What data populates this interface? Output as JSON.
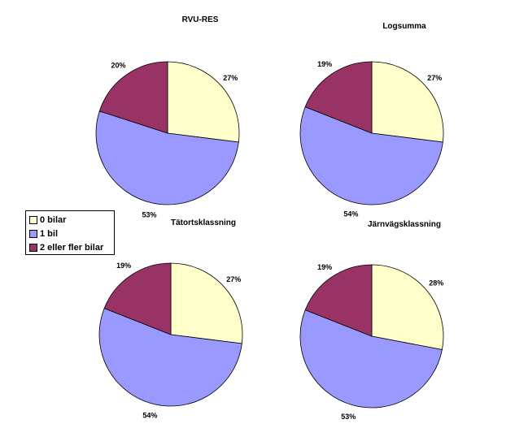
{
  "chart_data": [
    {
      "type": "pie",
      "title": "RVU-RES",
      "categories": [
        "0 bilar",
        "1 bil",
        "2 eller fler bilar"
      ],
      "values": [
        27,
        53,
        20
      ],
      "value_labels": [
        "27%",
        "53%",
        "20%"
      ]
    },
    {
      "type": "pie",
      "title": "Logsumma",
      "categories": [
        "0 bilar",
        "1 bil",
        "2 eller fler bilar"
      ],
      "values": [
        27,
        54,
        19
      ],
      "value_labels": [
        "27%",
        "54%",
        "19%"
      ]
    },
    {
      "type": "pie",
      "title": "Tätortsklassning",
      "categories": [
        "0 bilar",
        "1 bil",
        "2 eller fler bilar"
      ],
      "values": [
        27,
        54,
        19
      ],
      "value_labels": [
        "27%",
        "54%",
        "19%"
      ]
    },
    {
      "type": "pie",
      "title": "Järnvägsklassning",
      "categories": [
        "0 bilar",
        "1 bil",
        "2 eller fler bilar"
      ],
      "values": [
        28,
        53,
        19
      ],
      "value_labels": [
        "28%",
        "53%",
        "19%"
      ]
    }
  ],
  "legend": {
    "items": [
      {
        "label": "0 bilar",
        "color": "#ffffcc"
      },
      {
        "label": "1 bil",
        "color": "#9999ff"
      },
      {
        "label": "2 eller fler bilar",
        "color": "#993366"
      }
    ]
  }
}
